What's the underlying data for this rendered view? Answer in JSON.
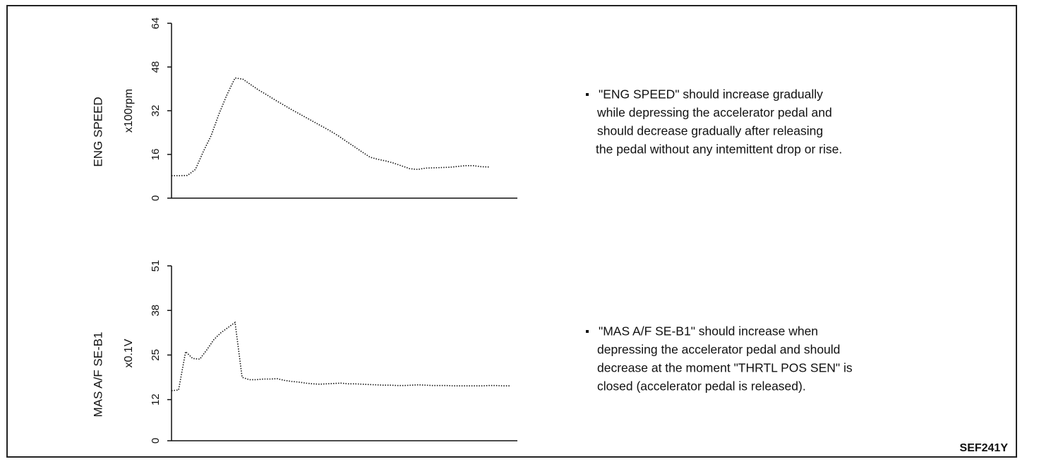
{
  "chart_data": [
    {
      "type": "line",
      "ylabel": "ENG SPEED",
      "unit": "x100rpm",
      "ylim": [
        0,
        64
      ],
      "yticks": [
        0,
        16,
        32,
        48,
        64
      ],
      "values": [
        8.2,
        8.2,
        8.3,
        10.5,
        17,
        23,
        31,
        38,
        44,
        43.5,
        41.5,
        39.5,
        37.8,
        36,
        34.3,
        32.6,
        31,
        29.4,
        27.8,
        26.2,
        24.6,
        22.8,
        20.8,
        18.9,
        16.9,
        15,
        14.2,
        13.6,
        12.8,
        11.8,
        10.8,
        10.5,
        11,
        11.1,
        11.2,
        11.3,
        11.6,
        11.9,
        11.9,
        11.5,
        11.4
      ],
      "note": [
        "\"ENG SPEED\" should increase gradually",
        "while depressing the accelerator pedal and",
        "should decrease gradually after releasing",
        "the pedal without any intemittent drop or rise."
      ]
    },
    {
      "type": "line",
      "ylabel": "MAS A/F SE-B1",
      "unit": "x0.1V",
      "ylim": [
        0,
        51
      ],
      "yticks": [
        0,
        12,
        25,
        38,
        51
      ],
      "values": [
        14.6,
        14.8,
        26,
        24,
        23.8,
        26.5,
        29.5,
        31.5,
        33,
        34.5,
        18.5,
        17.8,
        17.8,
        18,
        18,
        18.1,
        17.6,
        17.3,
        17.1,
        16.8,
        16.6,
        16.5,
        16.6,
        16.7,
        16.8,
        16.6,
        16.6,
        16.5,
        16.4,
        16.3,
        16.2,
        16.2,
        16.1,
        16.1,
        16.2,
        16.3,
        16.2,
        16.1,
        16.1,
        16.1,
        16.0,
        16.0,
        16.0,
        16.0,
        16.0,
        16.1,
        16.1,
        16.0,
        16.0
      ],
      "note": [
        "\"MAS A/F SE-B1\" should increase when",
        "depressing the accelerator pedal and  should",
        "decrease at the moment \"THRTL POS SEN\" is",
        "closed (accelerator pedal is released)."
      ]
    }
  ],
  "figure_id": "SEF241Y"
}
